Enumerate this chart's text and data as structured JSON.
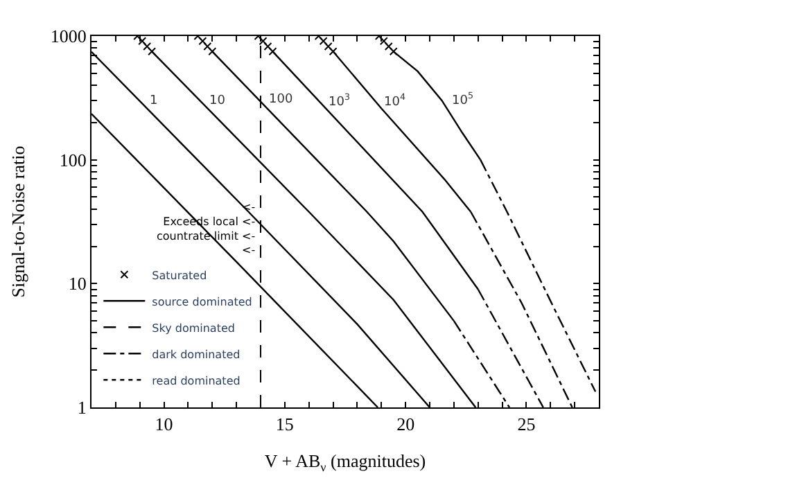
{
  "chart_data": {
    "type": "line",
    "xlabel": "V + AB$_{ν}$ (magnitudes)",
    "ylabel": "Signal-to-Noise ratio",
    "xlim": [
      7,
      28
    ],
    "ylim": [
      1,
      1000
    ],
    "log": "y",
    "xticks": [
      {
        "value": 7,
        "label": null
      },
      {
        "value": 8,
        "label": null
      },
      {
        "value": 9,
        "label": null
      },
      10,
      {
        "value": 11,
        "label": null
      },
      {
        "value": 12,
        "label": null
      },
      {
        "value": 13,
        "label": null
      },
      {
        "value": 14,
        "label": null
      },
      15,
      {
        "value": 16,
        "label": null
      },
      {
        "value": 17,
        "label": null
      },
      {
        "value": 18,
        "label": null
      },
      {
        "value": 19,
        "label": null
      },
      20,
      {
        "value": 21,
        "label": null
      },
      {
        "value": 22,
        "label": null
      },
      {
        "value": 23,
        "label": null
      },
      {
        "value": 24,
        "label": null
      },
      25,
      {
        "value": 26,
        "label": null
      },
      {
        "value": 27,
        "label": null
      }
    ],
    "yticks": [
      1,
      {
        "value": 2,
        "label": null
      },
      {
        "value": 3,
        "label": null
      },
      {
        "value": 4,
        "label": null
      },
      {
        "value": 5,
        "label": null
      },
      {
        "value": 6,
        "label": null
      },
      {
        "value": 7,
        "label": null
      },
      {
        "value": 8,
        "label": null
      },
      {
        "value": 9,
        "label": null
      },
      10,
      {
        "value": 20,
        "label": null
      },
      {
        "value": 30,
        "label": null
      },
      {
        "value": 40,
        "label": null
      },
      {
        "value": 50,
        "label": null
      },
      {
        "value": 60,
        "label": null
      },
      {
        "value": 70,
        "label": null
      },
      {
        "value": 80,
        "label": null
      },
      {
        "value": 90,
        "label": null
      },
      100,
      {
        "value": 200,
        "label": null
      },
      {
        "value": 300,
        "label": null
      },
      {
        "value": 400,
        "label": null
      },
      {
        "value": 500,
        "label": null
      },
      {
        "value": 600,
        "label": null
      },
      {
        "value": 700,
        "label": null
      },
      {
        "value": 800,
        "label": null
      },
      {
        "value": 900,
        "label": null
      },
      1000
    ],
    "legend": "bottom left",
    "series": [
      {
        "name": "Saturated",
        "type": "scatter",
        "marker": "cross",
        "color": "#000000",
        "x": [
          8.9,
          9.1,
          9.3,
          9.5,
          11.4,
          11.6,
          11.8,
          12.0,
          13.9,
          14.1,
          14.3,
          14.5,
          16.4,
          16.6,
          16.8,
          17.0,
          18.9,
          19.1,
          19.3,
          19.5
        ],
        "values": [
          1000,
          910,
          825,
          750,
          1000,
          910,
          825,
          750,
          1000,
          910,
          825,
          750,
          1000,
          910,
          825,
          750,
          1000,
          910,
          825,
          750
        ]
      },
      {
        "name": "source dominated",
        "line_style": "solid",
        "color": "#000000",
        "x": [
          7,
          13,
          18.85,
          null,
          7,
          13.5,
          18,
          21.0,
          null,
          9.5,
          16,
          19.5,
          22.9,
          null,
          12,
          18.4,
          19.5,
          22,
          null,
          14.5,
          20.7,
          23,
          null,
          17,
          19.0,
          21.6,
          22.7,
          null,
          19.5,
          20.5,
          21.5,
          22.36,
          23.1
        ],
        "values": [
          235,
          15,
          1,
          null,
          745,
          38,
          4.7,
          1,
          null,
          750,
          38,
          7.4,
          1,
          null,
          750,
          38,
          22,
          5,
          null,
          750,
          38,
          9,
          null,
          750,
          260,
          70,
          38,
          null,
          750,
          519,
          302,
          164,
          100
        ]
      },
      {
        "name": "Sky dominated",
        "line_style": "dashed",
        "color": "#000000"
      },
      {
        "name": "dark dominated",
        "line_style": "dashdot",
        "color": "#000000",
        "x": [
          22,
          24.3,
          null,
          23,
          25.7,
          null,
          22.7,
          24.8,
          26.9,
          null,
          23.1,
          24.2,
          26.1,
          27.86
        ],
        "values": [
          5,
          1,
          null,
          9,
          1,
          null,
          38,
          7,
          1,
          null,
          100,
          38,
          6.6,
          1.34
        ]
      },
      {
        "name": "read dominated",
        "line_style": "dotted",
        "color": "#000000"
      }
    ],
    "annotations": [
      {
        "text": "1",
        "x": 8.98,
        "y": 300
      },
      {
        "text": "10",
        "x": 11.5,
        "y": 295
      },
      {
        "text": "100",
        "x": 13.97,
        "y": 305
      },
      {
        "text": "10$^{3}$",
        "x": 16.4,
        "y": 298
      },
      {
        "text": "10$^{4}$",
        "x": 18.73,
        "y": 297
      },
      {
        "text": "10$^{5}$",
        "x": 21.5,
        "y": 302
      }
    ],
    "ref_lines": [
      {
        "axis": "x",
        "value": 14,
        "line_style": "dashed",
        "color": "#000000",
        "label": "<-\nExceeds local <-\ncountrate limit <-\n<-"
      }
    ]
  }
}
